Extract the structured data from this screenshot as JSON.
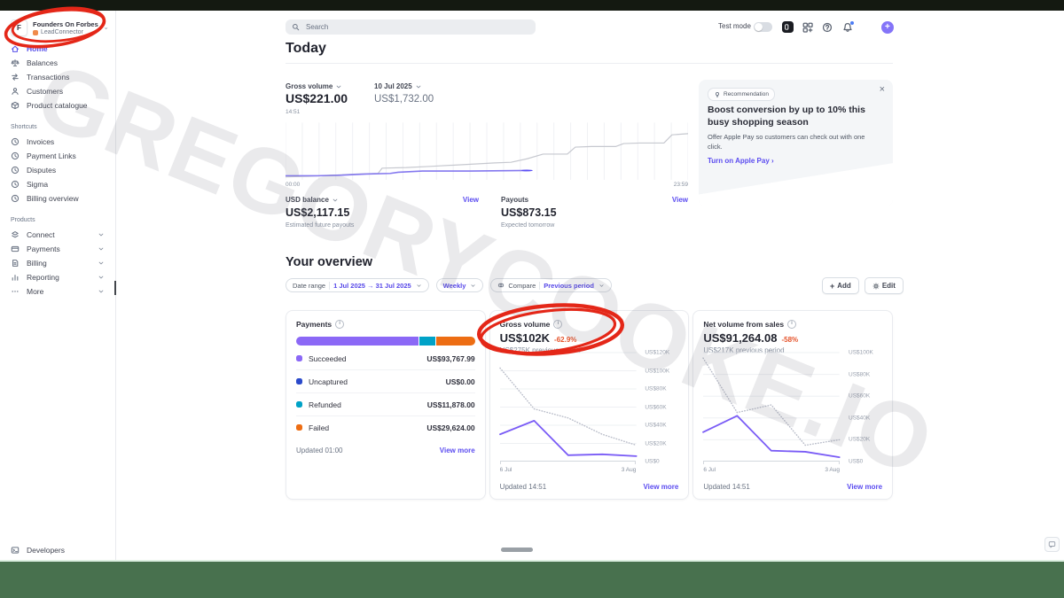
{
  "watermark": "GREGORYCOOKE.IO",
  "chrome": {
    "letterbox_top_color": "#141911",
    "letterbox_bottom_color": "#48714e",
    "annotation_color": "#e42718",
    "accent_color": "#635bff",
    "link_color": "#5b4cf0",
    "negative_color": "#e5532b"
  },
  "sidebar": {
    "account": {
      "avatar": "F",
      "name": "Founders On Forbes",
      "org": "LeadConnector"
    },
    "nav": [
      {
        "label": "Home",
        "icon": "home-icon",
        "active": true
      },
      {
        "label": "Balances",
        "icon": "balances-icon",
        "active": false
      },
      {
        "label": "Transactions",
        "icon": "transactions-icon",
        "active": false
      },
      {
        "label": "Customers",
        "icon": "customers-icon",
        "active": false
      },
      {
        "label": "Product catalogue",
        "icon": "product-catalogue-icon",
        "active": false
      }
    ],
    "shortcuts_label": "Shortcuts",
    "shortcuts": [
      {
        "label": "Invoices",
        "icon": "clock-icon"
      },
      {
        "label": "Payment Links",
        "icon": "clock-icon"
      },
      {
        "label": "Disputes",
        "icon": "clock-icon"
      },
      {
        "label": "Sigma",
        "icon": "clock-icon"
      },
      {
        "label": "Billing overview",
        "icon": "clock-icon"
      }
    ],
    "products_label": "Products",
    "products": [
      {
        "label": "Connect",
        "icon": "connect-icon"
      },
      {
        "label": "Payments",
        "icon": "payments-icon"
      },
      {
        "label": "Billing",
        "icon": "billing-icon"
      },
      {
        "label": "Reporting",
        "icon": "reporting-icon"
      },
      {
        "label": "More",
        "icon": "more-icon"
      }
    ],
    "developers_label": "Developers"
  },
  "topbar": {
    "search_placeholder": "Search",
    "test_mode_label": "Test mode",
    "icons": [
      "workbench-icon",
      "apps-icon",
      "help-icon",
      "notifications-icon",
      "settings-icon",
      "create-icon"
    ]
  },
  "today": {
    "heading": "Today",
    "gross_volume": {
      "label": "Gross volume",
      "value": "US$221.00",
      "time": "14:51"
    },
    "compare_date": {
      "label": "10 Jul 2025",
      "value": "US$1,732.00"
    },
    "spark": {
      "x_start": "00:00",
      "x_end": "23:59",
      "today_points": [
        [
          0,
          7
        ],
        [
          8,
          7
        ],
        [
          14,
          8
        ],
        [
          20,
          10
        ],
        [
          26,
          11
        ],
        [
          28,
          13
        ],
        [
          34,
          15
        ],
        [
          46,
          15
        ],
        [
          60,
          16
        ]
      ],
      "yesterday_points": [
        [
          0,
          5
        ],
        [
          6,
          6
        ],
        [
          12,
          8
        ],
        [
          18,
          10
        ],
        [
          23,
          11
        ],
        [
          24,
          20
        ],
        [
          30,
          21
        ],
        [
          36,
          23
        ],
        [
          44,
          26
        ],
        [
          52,
          29
        ],
        [
          56,
          30
        ],
        [
          60,
          36
        ],
        [
          64,
          44
        ],
        [
          67,
          44
        ],
        [
          70,
          44
        ],
        [
          72,
          56
        ],
        [
          76,
          57
        ],
        [
          82,
          57
        ],
        [
          84,
          62
        ],
        [
          88,
          63
        ],
        [
          94,
          63
        ],
        [
          96,
          77
        ],
        [
          100,
          79
        ]
      ]
    },
    "usd_balance": {
      "label": "USD balance",
      "value": "US$2,117.15",
      "caption": "Estimated future payouts",
      "link": "View"
    },
    "payouts": {
      "label": "Payouts",
      "value": "US$873.15",
      "caption": "Expected tomorrow",
      "link": "View"
    }
  },
  "recommendation": {
    "badge": "Recommendation",
    "title": "Boost conversion by up to 10% this busy shopping season",
    "body": "Offer Apple Pay so customers can check out with one click.",
    "cta": "Turn on Apple Pay"
  },
  "overview": {
    "heading": "Your overview",
    "date_range_label": "Date range",
    "date_range_value": "1 Jul 2025 → 31 Jul 2025",
    "granularity": "Weekly",
    "compare_label": "Compare",
    "compare_value": "Previous period",
    "add_label": "Add",
    "edit_label": "Edit"
  },
  "cards": {
    "payments": {
      "title": "Payments",
      "rows": [
        {
          "label": "Succeeded",
          "value": "US$93,767.99",
          "color": "#8b68f6",
          "pct": 69.3
        },
        {
          "label": "Uncaptured",
          "value": "US$0.00",
          "color": "#2b4acb",
          "pct": 0
        },
        {
          "label": "Refunded",
          "value": "US$11,878.00",
          "color": "#00a2c7",
          "pct": 8.8
        },
        {
          "label": "Failed",
          "value": "US$29,624.00",
          "color": "#ed6d13",
          "pct": 21.9
        }
      ],
      "updated": "Updated 01:00",
      "view_more": "View more"
    },
    "gross_volume": {
      "title": "Gross volume",
      "value": "US$102K",
      "delta": "-62.9%",
      "previous": "US$275K previous period",
      "updated": "Updated 14:51",
      "view_more": "View more",
      "chart": {
        "type": "line",
        "ymax": 120,
        "ylabels": [
          "US$120K",
          "US$100K",
          "US$80K",
          "US$60K",
          "US$40K",
          "US$20K",
          "US$0"
        ],
        "xlabels": [
          "6 Jul",
          "3 Aug"
        ],
        "series": [
          {
            "name": "previous period",
            "values": [
              103,
              58,
              48,
              30,
              18
            ]
          },
          {
            "name": "current",
            "values": [
              30,
              45,
              7,
              8,
              6
            ]
          }
        ]
      }
    },
    "net_volume": {
      "title": "Net volume from sales",
      "value": "US$91,264.08",
      "delta": "-58%",
      "previous": "US$217K previous period",
      "updated": "Updated 14:51",
      "view_more": "View more",
      "chart": {
        "type": "line",
        "ymax": 100,
        "ylabels": [
          "US$100K",
          "US$80K",
          "US$60K",
          "US$40K",
          "US$20K",
          "US$0"
        ],
        "xlabels": [
          "6 Jul",
          "3 Aug"
        ],
        "series": [
          {
            "name": "previous period",
            "values": [
              95,
              45,
              52,
              15,
              20
            ]
          },
          {
            "name": "current",
            "values": [
              27,
              42,
              10,
              9,
              4
            ]
          }
        ]
      }
    }
  }
}
